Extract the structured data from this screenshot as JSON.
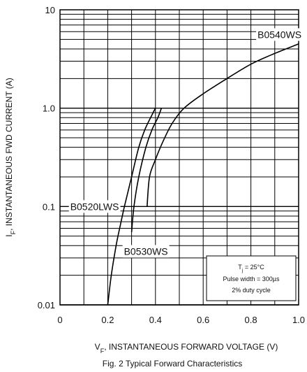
{
  "chart_data": {
    "type": "line",
    "title": "",
    "caption": "Fig. 2 Typical Forward Characteristics",
    "xlabel": {
      "main": "V",
      "sub": "F",
      "rest": ", INSTANTANEOUS FORWARD VOLTAGE (V)"
    },
    "ylabel": {
      "main": "I",
      "sub": "F",
      "rest": ", INSTANTANEOUS FWD CURRENT (A)"
    },
    "xlim": [
      0,
      1.0
    ],
    "ylim": [
      0.01,
      10
    ],
    "yscale": "log",
    "grid": true,
    "x_ticks": [
      "0",
      "0.2",
      "0.4",
      "0.6",
      "0.8",
      "1.0"
    ],
    "y_ticks": [
      "10",
      "1.0",
      "0.1",
      "0.01"
    ],
    "conditions": {
      "line1_main": "T",
      "line1_sub": "j",
      "line1_rest": " = 25°C",
      "line2": "Pulse width = 300µs",
      "line3": "2% duty cycle"
    },
    "series": [
      {
        "name": "B0520LWS",
        "label_at": [
          0.145,
          0.1
        ],
        "points": [
          [
            0.2,
            0.01
          ],
          [
            0.215,
            0.02
          ],
          [
            0.235,
            0.04
          ],
          [
            0.25,
            0.06
          ],
          [
            0.27,
            0.1
          ],
          [
            0.3,
            0.2
          ],
          [
            0.33,
            0.4
          ],
          [
            0.355,
            0.6
          ],
          [
            0.385,
            0.85
          ],
          [
            0.4,
            1.0
          ]
        ]
      },
      {
        "name": "B0530WS",
        "label_at": [
          0.36,
          0.035
        ],
        "points": [
          [
            0.3,
            0.055
          ],
          [
            0.31,
            0.1
          ],
          [
            0.33,
            0.2
          ],
          [
            0.36,
            0.4
          ],
          [
            0.385,
            0.6
          ],
          [
            0.41,
            0.8
          ],
          [
            0.425,
            1.0
          ]
        ]
      },
      {
        "name": "B0540WS",
        "label_at": [
          0.92,
          5.6
        ],
        "points": [
          [
            0.365,
            0.1
          ],
          [
            0.375,
            0.2
          ],
          [
            0.4,
            0.3
          ],
          [
            0.43,
            0.45
          ],
          [
            0.47,
            0.7
          ],
          [
            0.52,
            1.0
          ],
          [
            0.6,
            1.4
          ],
          [
            0.7,
            2.0
          ],
          [
            0.8,
            2.8
          ],
          [
            0.9,
            3.6
          ],
          [
            1.0,
            4.5
          ]
        ]
      }
    ]
  }
}
